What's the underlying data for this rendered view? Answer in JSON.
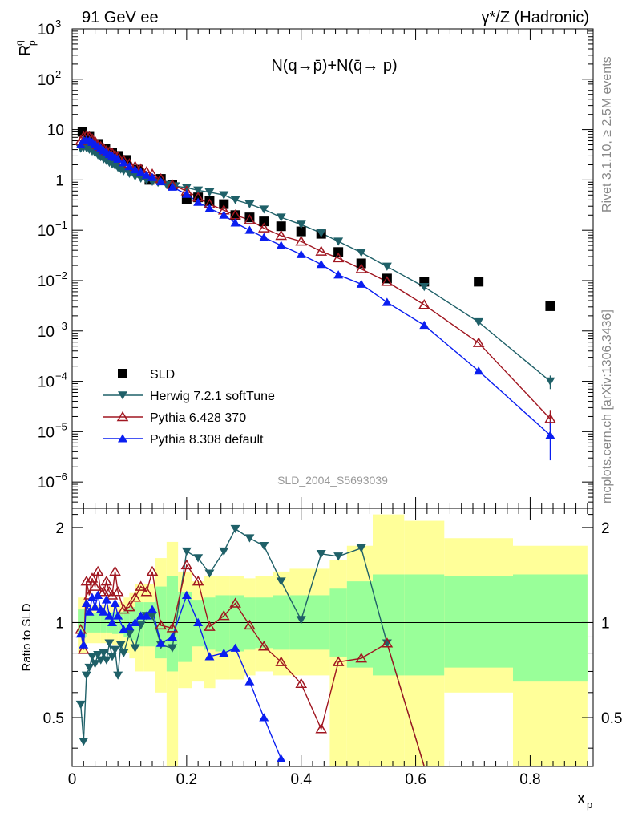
{
  "header": {
    "left": "91 GeV ee",
    "right": "γ*/Z (Hadronic)"
  },
  "side_labels": {
    "top": "Rivet 3.1.10, ≥ 2.5M events",
    "bottom": "mcplots.cern.ch [arXiv:1306.3436]"
  },
  "analysis_id": "SLD_2004_S5693039",
  "colors": {
    "sld": "#000000",
    "herwig": "#1f6068",
    "pythia6": "#a01620",
    "pythia8": "#0a1ef0",
    "band_inner": "#99ff99",
    "band_outer": "#ffff99"
  },
  "chart_data": [
    {
      "type": "scatter",
      "panel": "main",
      "title": "N(q→p̄)+N(q̄→ p)",
      "xlabel": "x_p",
      "ylabel": "R^q_p",
      "yscale": "log",
      "xlim": [
        0,
        0.91
      ],
      "ylim": [
        3e-07,
        1000
      ],
      "yticks": [
        {
          "value": 1e-06,
          "mant": "10",
          "exp": "−6"
        },
        {
          "value": 1e-05,
          "mant": "10",
          "exp": "−5"
        },
        {
          "value": 0.0001,
          "mant": "10",
          "exp": "−4"
        },
        {
          "value": 0.001,
          "mant": "10",
          "exp": "−3"
        },
        {
          "value": 0.01,
          "mant": "10",
          "exp": "−2"
        },
        {
          "value": 0.1,
          "mant": "10",
          "exp": "−1"
        },
        {
          "value": 1,
          "mant": "1",
          "exp": ""
        },
        {
          "value": 10,
          "mant": "10",
          "exp": ""
        },
        {
          "value": 100,
          "mant": "10",
          "exp": "2"
        },
        {
          "value": 1000,
          "mant": "10",
          "exp": "3"
        }
      ],
      "legend": [
        "SLD",
        "Herwig 7.2.1 softTune",
        "Pythia 6.428 370",
        "Pythia 8.308 default"
      ],
      "legend_position": "bottom-left",
      "series": [
        {
          "name": "SLD",
          "marker": "square",
          "x": [
            0.018,
            0.03,
            0.045,
            0.058,
            0.07,
            0.08,
            0.095,
            0.115,
            0.135,
            0.155,
            0.175,
            0.2,
            0.22,
            0.24,
            0.265,
            0.285,
            0.31,
            0.335,
            0.365,
            0.4,
            0.435,
            0.465,
            0.505,
            0.55,
            0.615,
            0.71,
            0.835
          ],
          "y": [
            9,
            7.2,
            5.2,
            4.2,
            3.4,
            3.0,
            2.5,
            1.6,
            1.0,
            1.05,
            0.8,
            0.42,
            0.45,
            0.38,
            0.33,
            0.2,
            0.18,
            0.15,
            0.12,
            0.095,
            0.085,
            0.037,
            0.022,
            0.011,
            0.0095,
            0.0095,
            0.0031
          ]
        },
        {
          "name": "Herwig 7.2.1 softTune",
          "marker": "triangle-down",
          "x": [
            0.015,
            0.02,
            0.025,
            0.03,
            0.035,
            0.04,
            0.045,
            0.05,
            0.055,
            0.06,
            0.065,
            0.07,
            0.075,
            0.08,
            0.085,
            0.09,
            0.1,
            0.11,
            0.12,
            0.13,
            0.14,
            0.15,
            0.165,
            0.18,
            0.2,
            0.22,
            0.24,
            0.265,
            0.285,
            0.31,
            0.335,
            0.365,
            0.4,
            0.435,
            0.465,
            0.505,
            0.55,
            0.615,
            0.71,
            0.835
          ],
          "y": [
            4.2,
            4.4,
            4.3,
            4.0,
            3.7,
            3.4,
            3.1,
            2.85,
            2.6,
            2.4,
            2.2,
            2.05,
            1.9,
            1.75,
            1.62,
            1.5,
            1.33,
            1.18,
            1.07,
            0.98,
            0.92,
            0.88,
            0.8,
            0.75,
            0.7,
            0.62,
            0.57,
            0.5,
            0.4,
            0.33,
            0.26,
            0.18,
            0.13,
            0.088,
            0.06,
            0.036,
            0.019,
            0.0075,
            0.0015,
            0.0001
          ]
        },
        {
          "name": "Pythia 6.428 370",
          "marker": "triangle-up-open",
          "x": [
            0.015,
            0.02,
            0.025,
            0.03,
            0.035,
            0.04,
            0.045,
            0.05,
            0.055,
            0.06,
            0.065,
            0.07,
            0.075,
            0.08,
            0.09,
            0.1,
            0.11,
            0.12,
            0.13,
            0.14,
            0.155,
            0.175,
            0.2,
            0.22,
            0.24,
            0.265,
            0.285,
            0.31,
            0.335,
            0.365,
            0.4,
            0.435,
            0.465,
            0.505,
            0.55,
            0.615,
            0.71,
            0.835
          ],
          "y": [
            6.0,
            7.2,
            7.5,
            7.2,
            6.5,
            5.8,
            5.0,
            4.6,
            4.2,
            3.8,
            3.6,
            3.4,
            3.1,
            2.9,
            2.45,
            2.1,
            1.85,
            1.65,
            1.45,
            1.3,
            1.05,
            0.8,
            0.6,
            0.45,
            0.33,
            0.25,
            0.2,
            0.16,
            0.11,
            0.078,
            0.06,
            0.038,
            0.028,
            0.017,
            0.0095,
            0.0033,
            0.00058,
            1.8e-05
          ]
        },
        {
          "name": "Pythia 8.308 default",
          "marker": "triangle-up",
          "x": [
            0.015,
            0.02,
            0.025,
            0.03,
            0.035,
            0.04,
            0.045,
            0.05,
            0.055,
            0.06,
            0.065,
            0.07,
            0.075,
            0.08,
            0.09,
            0.1,
            0.11,
            0.12,
            0.13,
            0.14,
            0.155,
            0.175,
            0.2,
            0.22,
            0.24,
            0.265,
            0.285,
            0.31,
            0.335,
            0.365,
            0.4,
            0.435,
            0.465,
            0.505,
            0.55,
            0.615,
            0.71,
            0.835
          ],
          "y": [
            5.0,
            6.0,
            6.2,
            6.0,
            5.6,
            5.1,
            4.6,
            4.2,
            3.8,
            3.5,
            3.2,
            3.0,
            2.8,
            2.6,
            2.2,
            1.85,
            1.6,
            1.42,
            1.25,
            1.12,
            0.92,
            0.72,
            0.52,
            0.36,
            0.27,
            0.2,
            0.14,
            0.1,
            0.072,
            0.05,
            0.033,
            0.021,
            0.013,
            0.0085,
            0.0037,
            0.0013,
            0.00016,
            8.5e-06
          ]
        }
      ]
    },
    {
      "type": "line",
      "panel": "ratio",
      "xlabel": "x_p",
      "ylabel": "Ratio to SLD",
      "xlim": [
        0,
        0.91
      ],
      "ylim": [
        0.35,
        2.3
      ],
      "xticks": [
        "0",
        "0.2",
        "0.4",
        "0.6",
        "0.8"
      ],
      "yticks": [
        "0.5",
        "1",
        "2"
      ],
      "bands": {
        "edges": [
          0.01,
          0.025,
          0.04,
          0.05,
          0.06,
          0.07,
          0.08,
          0.09,
          0.1,
          0.11,
          0.125,
          0.145,
          0.165,
          0.185,
          0.21,
          0.23,
          0.25,
          0.275,
          0.3,
          0.32,
          0.35,
          0.38,
          0.42,
          0.45,
          0.48,
          0.525,
          0.58,
          0.65,
          0.77,
          0.9
        ],
        "inner_lo": [
          0.9,
          0.93,
          0.93,
          0.93,
          0.93,
          0.92,
          0.92,
          0.9,
          0.88,
          0.84,
          0.84,
          0.77,
          0.7,
          0.75,
          0.84,
          0.82,
          0.81,
          0.81,
          0.82,
          0.83,
          0.82,
          0.82,
          0.82,
          0.78,
          0.72,
          0.68,
          0.68,
          0.72,
          0.65
        ],
        "inner_hi": [
          1.1,
          1.07,
          1.07,
          1.07,
          1.07,
          1.08,
          1.08,
          1.1,
          1.12,
          1.16,
          1.16,
          1.3,
          1.4,
          1.25,
          1.18,
          1.2,
          1.22,
          1.22,
          1.2,
          1.2,
          1.22,
          1.22,
          1.22,
          1.28,
          1.35,
          1.42,
          1.42,
          1.4,
          1.42
        ],
        "outer_lo": [
          0.8,
          0.86,
          0.86,
          0.86,
          0.86,
          0.85,
          0.84,
          0.8,
          0.77,
          0.7,
          0.7,
          0.6,
          0.35,
          0.62,
          0.65,
          0.62,
          0.66,
          0.66,
          0.68,
          0.7,
          0.68,
          0.68,
          0.68,
          0.35,
          0.35,
          0.35,
          0.35,
          0.6,
          0.35
        ],
        "outer_hi": [
          1.2,
          1.14,
          1.14,
          1.14,
          1.14,
          1.15,
          1.16,
          1.2,
          1.24,
          1.32,
          1.32,
          1.6,
          1.8,
          1.45,
          1.35,
          1.4,
          1.4,
          1.4,
          1.38,
          1.4,
          1.45,
          1.48,
          1.48,
          1.58,
          1.75,
          2.2,
          2.1,
          1.85,
          1.75
        ]
      },
      "series": [
        {
          "name": "Herwig 7.2.1 softTune",
          "x": [
            0.015,
            0.02,
            0.025,
            0.03,
            0.035,
            0.04,
            0.045,
            0.05,
            0.055,
            0.06,
            0.065,
            0.07,
            0.075,
            0.08,
            0.085,
            0.09,
            0.1,
            0.11,
            0.12,
            0.13,
            0.14,
            0.155,
            0.175,
            0.2,
            0.22,
            0.24,
            0.265,
            0.285,
            0.31,
            0.335,
            0.365,
            0.4,
            0.435,
            0.465,
            0.505,
            0.55,
            0.615,
            0.66
          ],
          "y": [
            0.55,
            0.42,
            0.68,
            0.72,
            0.78,
            0.74,
            0.79,
            0.76,
            0.8,
            0.76,
            0.86,
            0.78,
            0.82,
            0.68,
            0.85,
            0.8,
            0.92,
            0.83,
            0.98,
            1.05,
            1.05,
            0.85,
            0.83,
            1.68,
            1.6,
            1.43,
            1.68,
            1.98,
            1.85,
            1.75,
            1.35,
            1.02,
            1.65,
            1.62,
            1.72,
            0.86,
            0.35,
            0.35
          ]
        },
        {
          "name": "Pythia 6.428 370",
          "x": [
            0.015,
            0.02,
            0.025,
            0.03,
            0.035,
            0.04,
            0.045,
            0.05,
            0.055,
            0.06,
            0.065,
            0.07,
            0.075,
            0.08,
            0.09,
            0.1,
            0.11,
            0.12,
            0.13,
            0.14,
            0.155,
            0.175,
            0.2,
            0.22,
            0.24,
            0.265,
            0.285,
            0.31,
            0.335,
            0.365,
            0.4,
            0.435,
            0.465,
            0.505,
            0.55,
            0.615
          ],
          "y": [
            0.95,
            0.82,
            1.35,
            1.22,
            1.38,
            1.3,
            1.45,
            1.25,
            1.25,
            1.35,
            1.25,
            1.22,
            1.45,
            1.25,
            1.1,
            1.12,
            1.2,
            1.3,
            1.25,
            1.45,
            0.98,
            0.96,
            1.52,
            1.35,
            0.97,
            1.05,
            1.15,
            0.98,
            0.84,
            0.75,
            0.64,
            0.46,
            0.75,
            0.77,
            0.86,
            0.35
          ]
        },
        {
          "name": "Pythia 8.308 default",
          "x": [
            0.015,
            0.02,
            0.025,
            0.03,
            0.035,
            0.04,
            0.045,
            0.05,
            0.055,
            0.06,
            0.065,
            0.07,
            0.075,
            0.08,
            0.09,
            0.1,
            0.11,
            0.12,
            0.13,
            0.14,
            0.155,
            0.175,
            0.2,
            0.22,
            0.24,
            0.265,
            0.285,
            0.31,
            0.335,
            0.365
          ],
          "y": [
            0.92,
            0.85,
            1.15,
            1.08,
            1.2,
            1.12,
            1.22,
            1.1,
            1.08,
            1.18,
            1.05,
            1.0,
            1.15,
            1.05,
            0.95,
            0.97,
            1.0,
            1.05,
            1.05,
            1.1,
            0.86,
            0.9,
            1.22,
            1.0,
            0.78,
            0.8,
            0.83,
            0.65,
            0.5,
            0.37
          ]
        }
      ]
    }
  ]
}
